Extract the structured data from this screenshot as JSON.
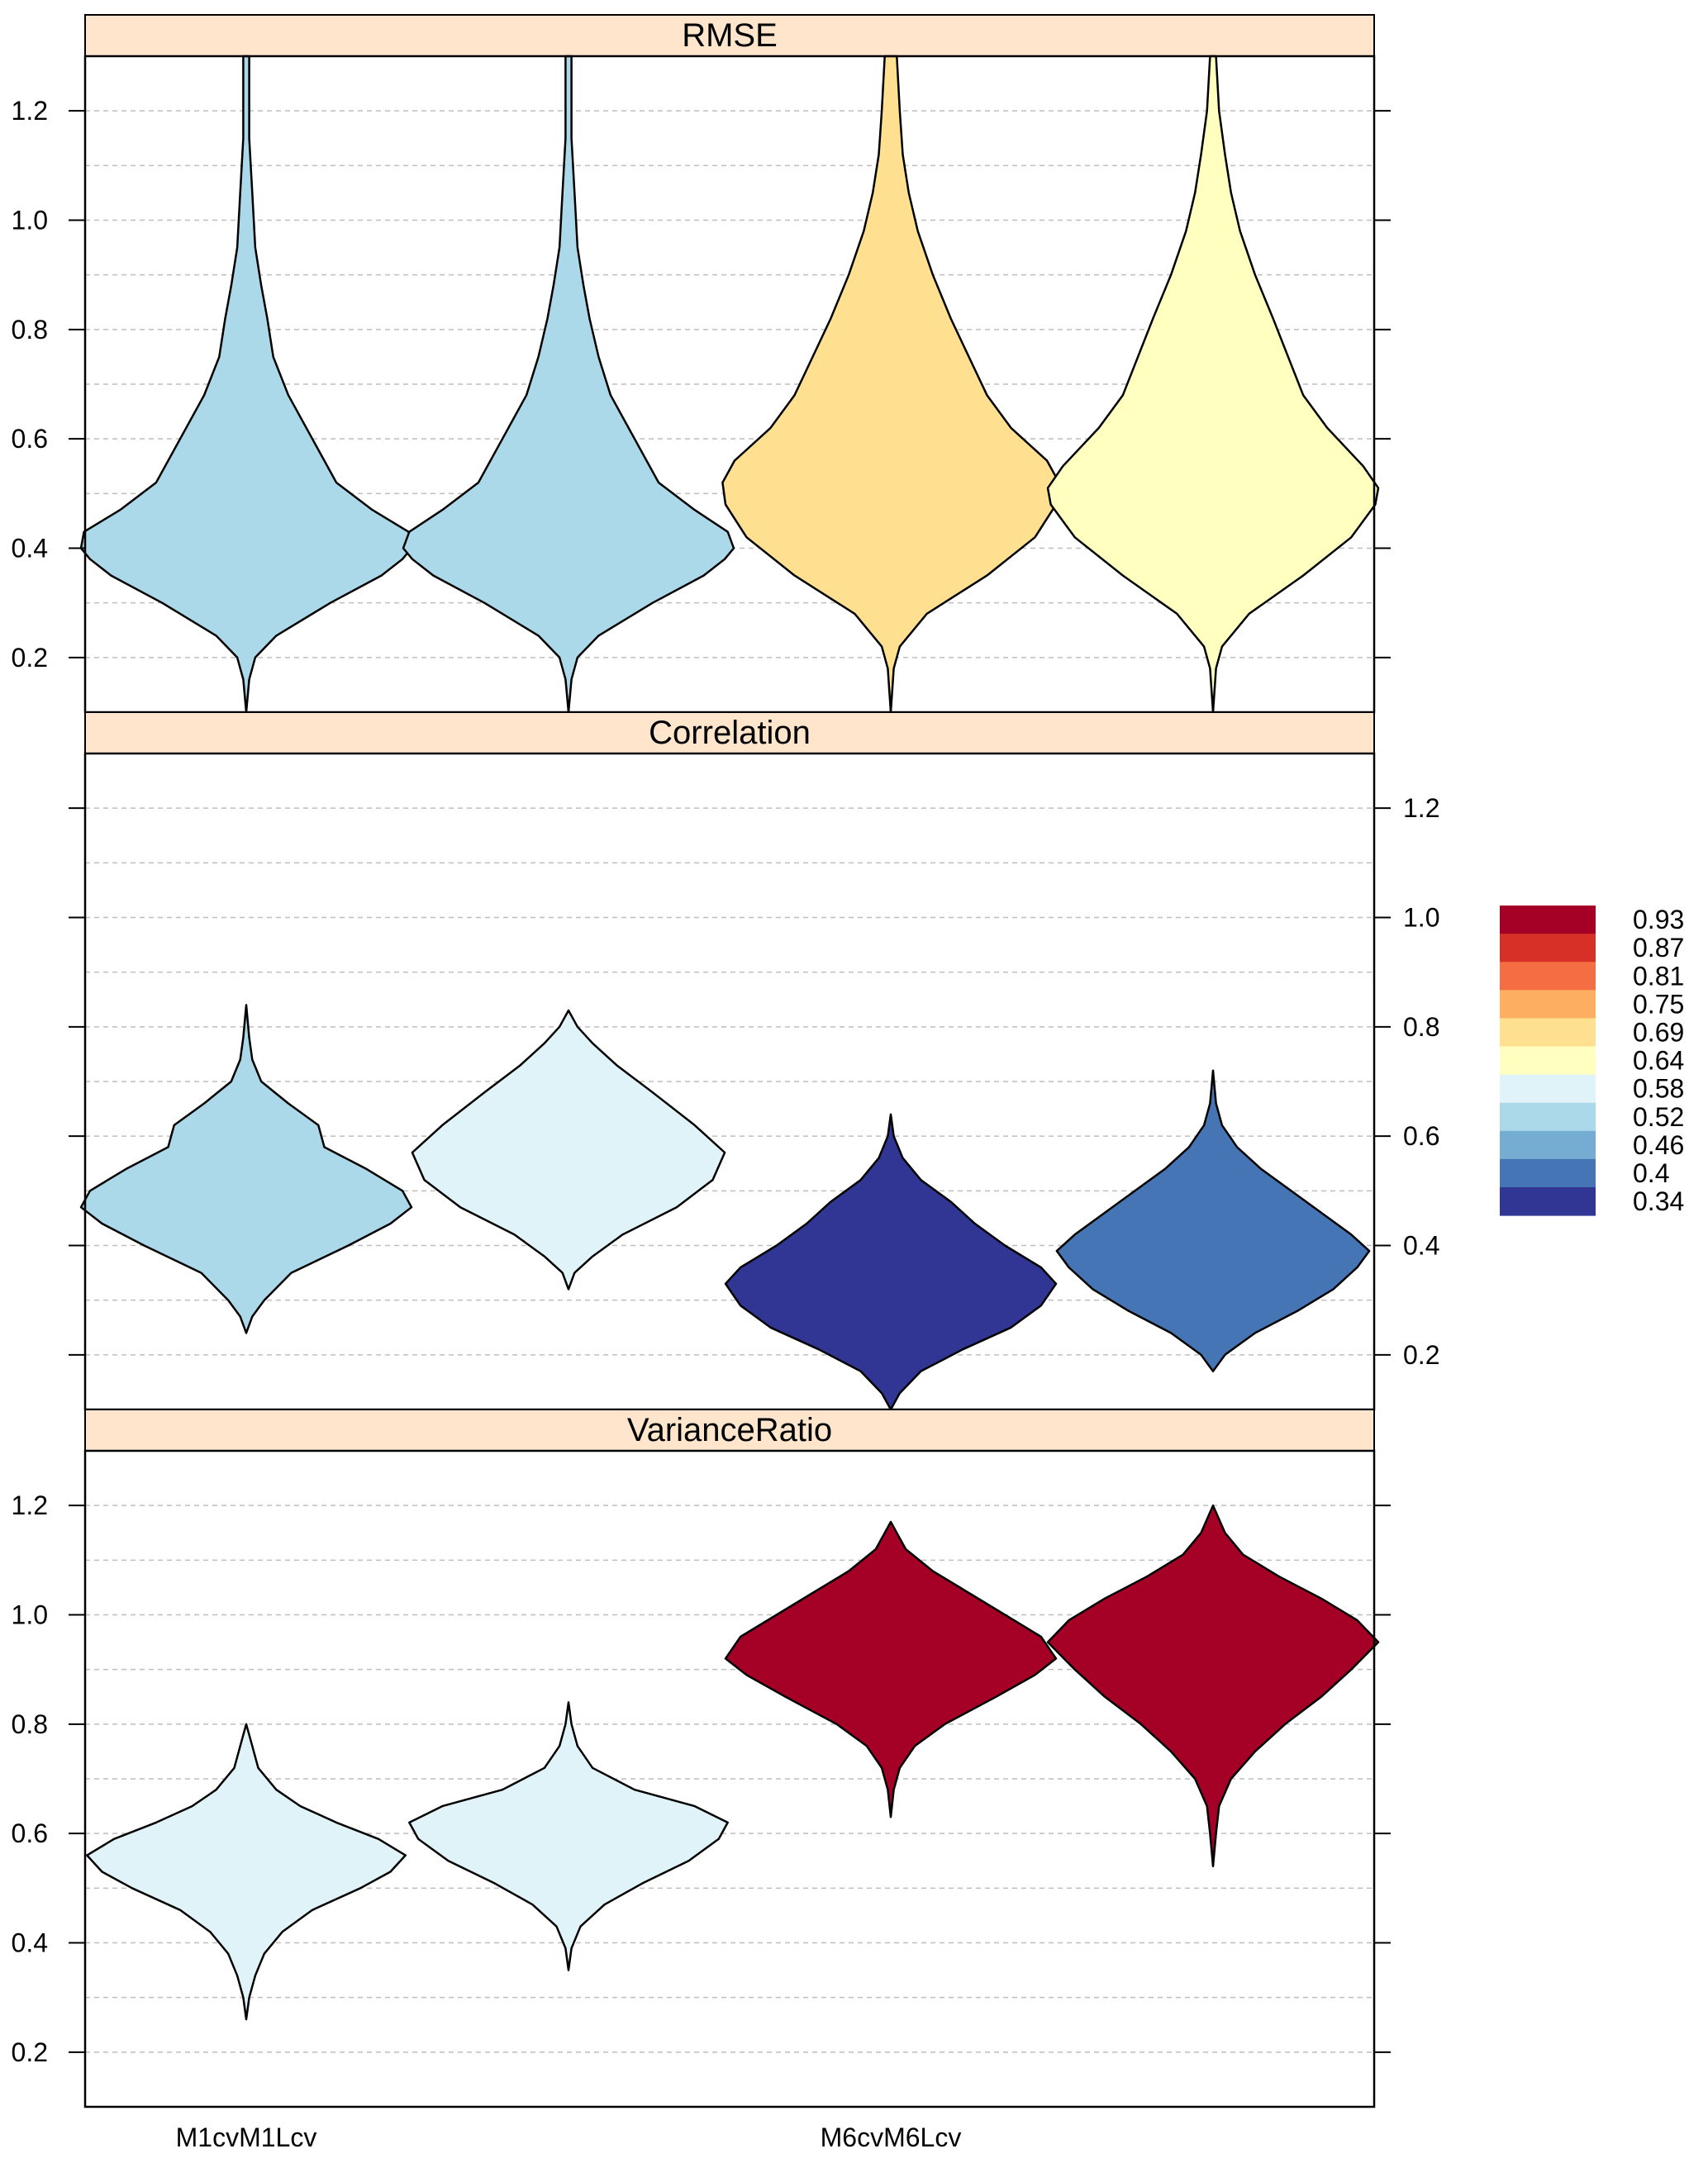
{
  "chart_data": {
    "type": "violin",
    "grid": true,
    "legend_position": "right",
    "categories": [
      "M1cvM1Lcv",
      "",
      "M6cvM6Lcv",
      ""
    ],
    "ylim": [
      0.1,
      1.3
    ],
    "yticks": [
      0.2,
      0.4,
      0.6,
      0.8,
      1.0,
      1.2
    ],
    "ytick_labels": [
      "0.2",
      "0.4",
      "0.6",
      "0.8",
      "1.0",
      "1.2"
    ],
    "panels": [
      {
        "title": "RMSE",
        "tick_side": "left",
        "violins": [
          {
            "color": "#ABD9E9",
            "min": 0.1,
            "max": 1.3,
            "profile": [
              [
                0.1,
                0.0
              ],
              [
                0.16,
                0.01
              ],
              [
                0.2,
                0.03
              ],
              [
                0.24,
                0.1
              ],
              [
                0.3,
                0.28
              ],
              [
                0.35,
                0.45
              ],
              [
                0.38,
                0.52
              ],
              [
                0.4,
                0.55
              ],
              [
                0.43,
                0.54
              ],
              [
                0.47,
                0.42
              ],
              [
                0.52,
                0.3
              ],
              [
                0.6,
                0.22
              ],
              [
                0.68,
                0.14
              ],
              [
                0.75,
                0.09
              ],
              [
                0.82,
                0.07
              ],
              [
                0.88,
                0.05
              ],
              [
                0.95,
                0.03
              ],
              [
                1.05,
                0.02
              ],
              [
                1.15,
                0.01
              ],
              [
                1.3,
                0.01
              ]
            ]
          },
          {
            "color": "#ABD9E9",
            "min": 0.1,
            "max": 1.3,
            "profile": [
              [
                0.1,
                0.0
              ],
              [
                0.16,
                0.01
              ],
              [
                0.2,
                0.03
              ],
              [
                0.24,
                0.1
              ],
              [
                0.3,
                0.28
              ],
              [
                0.35,
                0.45
              ],
              [
                0.38,
                0.52
              ],
              [
                0.4,
                0.55
              ],
              [
                0.43,
                0.53
              ],
              [
                0.47,
                0.42
              ],
              [
                0.52,
                0.3
              ],
              [
                0.6,
                0.22
              ],
              [
                0.68,
                0.14
              ],
              [
                0.75,
                0.1
              ],
              [
                0.82,
                0.07
              ],
              [
                0.88,
                0.05
              ],
              [
                0.95,
                0.03
              ],
              [
                1.05,
                0.02
              ],
              [
                1.15,
                0.01
              ],
              [
                1.3,
                0.01
              ]
            ]
          },
          {
            "color": "#FEE090",
            "min": 0.1,
            "max": 1.3,
            "profile": [
              [
                0.1,
                0.0
              ],
              [
                0.18,
                0.01
              ],
              [
                0.22,
                0.03
              ],
              [
                0.28,
                0.12
              ],
              [
                0.35,
                0.32
              ],
              [
                0.42,
                0.48
              ],
              [
                0.48,
                0.55
              ],
              [
                0.52,
                0.56
              ],
              [
                0.56,
                0.52
              ],
              [
                0.62,
                0.4
              ],
              [
                0.68,
                0.32
              ],
              [
                0.75,
                0.26
              ],
              [
                0.82,
                0.2
              ],
              [
                0.9,
                0.14
              ],
              [
                0.98,
                0.09
              ],
              [
                1.05,
                0.06
              ],
              [
                1.12,
                0.04
              ],
              [
                1.2,
                0.03
              ],
              [
                1.3,
                0.02
              ]
            ]
          },
          {
            "color": "#FFFFBF",
            "min": 0.1,
            "max": 1.3,
            "profile": [
              [
                0.1,
                0.0
              ],
              [
                0.18,
                0.01
              ],
              [
                0.22,
                0.03
              ],
              [
                0.28,
                0.12
              ],
              [
                0.35,
                0.3
              ],
              [
                0.42,
                0.46
              ],
              [
                0.48,
                0.54
              ],
              [
                0.51,
                0.55
              ],
              [
                0.55,
                0.5
              ],
              [
                0.62,
                0.38
              ],
              [
                0.68,
                0.3
              ],
              [
                0.75,
                0.25
              ],
              [
                0.82,
                0.2
              ],
              [
                0.9,
                0.14
              ],
              [
                0.98,
                0.09
              ],
              [
                1.05,
                0.06
              ],
              [
                1.12,
                0.04
              ],
              [
                1.2,
                0.02
              ],
              [
                1.3,
                0.01
              ]
            ]
          }
        ]
      },
      {
        "title": "Correlation",
        "tick_side": "right",
        "violins": [
          {
            "color": "#ABD9E9",
            "min": 0.24,
            "max": 0.84,
            "profile": [
              [
                0.24,
                0.0
              ],
              [
                0.27,
                0.02
              ],
              [
                0.3,
                0.06
              ],
              [
                0.35,
                0.15
              ],
              [
                0.4,
                0.34
              ],
              [
                0.44,
                0.48
              ],
              [
                0.47,
                0.55
              ],
              [
                0.5,
                0.52
              ],
              [
                0.54,
                0.4
              ],
              [
                0.58,
                0.26
              ],
              [
                0.62,
                0.24
              ],
              [
                0.66,
                0.14
              ],
              [
                0.7,
                0.05
              ],
              [
                0.74,
                0.02
              ],
              [
                0.78,
                0.01
              ],
              [
                0.84,
                0.0
              ]
            ]
          },
          {
            "color": "#E0F3F8",
            "min": 0.32,
            "max": 0.83,
            "profile": [
              [
                0.32,
                0.0
              ],
              [
                0.35,
                0.02
              ],
              [
                0.38,
                0.08
              ],
              [
                0.42,
                0.18
              ],
              [
                0.47,
                0.36
              ],
              [
                0.52,
                0.48
              ],
              [
                0.57,
                0.52
              ],
              [
                0.62,
                0.42
              ],
              [
                0.68,
                0.28
              ],
              [
                0.73,
                0.16
              ],
              [
                0.77,
                0.08
              ],
              [
                0.8,
                0.03
              ],
              [
                0.83,
                0.0
              ]
            ]
          },
          {
            "color": "#313695",
            "min": 0.1,
            "max": 0.64,
            "profile": [
              [
                0.1,
                0.0
              ],
              [
                0.13,
                0.03
              ],
              [
                0.17,
                0.1
              ],
              [
                0.21,
                0.24
              ],
              [
                0.25,
                0.4
              ],
              [
                0.29,
                0.5
              ],
              [
                0.33,
                0.55
              ],
              [
                0.36,
                0.5
              ],
              [
                0.4,
                0.38
              ],
              [
                0.44,
                0.28
              ],
              [
                0.48,
                0.2
              ],
              [
                0.52,
                0.1
              ],
              [
                0.56,
                0.04
              ],
              [
                0.6,
                0.01
              ],
              [
                0.64,
                0.0
              ]
            ]
          },
          {
            "color": "#4575B4",
            "min": 0.17,
            "max": 0.72,
            "profile": [
              [
                0.17,
                0.0
              ],
              [
                0.2,
                0.04
              ],
              [
                0.24,
                0.14
              ],
              [
                0.28,
                0.28
              ],
              [
                0.32,
                0.4
              ],
              [
                0.36,
                0.48
              ],
              [
                0.39,
                0.52
              ],
              [
                0.42,
                0.46
              ],
              [
                0.46,
                0.36
              ],
              [
                0.5,
                0.26
              ],
              [
                0.54,
                0.16
              ],
              [
                0.58,
                0.08
              ],
              [
                0.62,
                0.03
              ],
              [
                0.66,
                0.01
              ],
              [
                0.72,
                0.0
              ]
            ]
          }
        ]
      },
      {
        "title": "VarianceRatio",
        "tick_side": "left",
        "violins": [
          {
            "color": "#E0F3F8",
            "min": 0.26,
            "max": 0.8,
            "profile": [
              [
                0.26,
                0.0
              ],
              [
                0.3,
                0.01
              ],
              [
                0.34,
                0.03
              ],
              [
                0.38,
                0.06
              ],
              [
                0.42,
                0.12
              ],
              [
                0.46,
                0.22
              ],
              [
                0.5,
                0.38
              ],
              [
                0.53,
                0.48
              ],
              [
                0.56,
                0.53
              ],
              [
                0.59,
                0.44
              ],
              [
                0.62,
                0.3
              ],
              [
                0.65,
                0.18
              ],
              [
                0.68,
                0.1
              ],
              [
                0.72,
                0.04
              ],
              [
                0.76,
                0.02
              ],
              [
                0.8,
                0.0
              ]
            ]
          },
          {
            "color": "#E0F3F8",
            "min": 0.35,
            "max": 0.84,
            "profile": [
              [
                0.35,
                0.0
              ],
              [
                0.39,
                0.01
              ],
              [
                0.43,
                0.04
              ],
              [
                0.47,
                0.12
              ],
              [
                0.51,
                0.25
              ],
              [
                0.55,
                0.4
              ],
              [
                0.59,
                0.5
              ],
              [
                0.62,
                0.53
              ],
              [
                0.65,
                0.42
              ],
              [
                0.68,
                0.22
              ],
              [
                0.72,
                0.08
              ],
              [
                0.76,
                0.03
              ],
              [
                0.8,
                0.01
              ],
              [
                0.84,
                0.0
              ]
            ]
          },
          {
            "color": "#A50026",
            "min": 0.63,
            "max": 1.17,
            "profile": [
              [
                0.63,
                0.0
              ],
              [
                0.68,
                0.01
              ],
              [
                0.72,
                0.03
              ],
              [
                0.76,
                0.08
              ],
              [
                0.8,
                0.18
              ],
              [
                0.85,
                0.35
              ],
              [
                0.89,
                0.48
              ],
              [
                0.92,
                0.55
              ],
              [
                0.96,
                0.5
              ],
              [
                1.0,
                0.38
              ],
              [
                1.04,
                0.26
              ],
              [
                1.08,
                0.14
              ],
              [
                1.12,
                0.05
              ],
              [
                1.15,
                0.02
              ],
              [
                1.17,
                0.0
              ]
            ]
          },
          {
            "color": "#A50026",
            "min": 0.54,
            "max": 1.2,
            "profile": [
              [
                0.54,
                0.0
              ],
              [
                0.6,
                0.01
              ],
              [
                0.65,
                0.02
              ],
              [
                0.7,
                0.06
              ],
              [
                0.75,
                0.14
              ],
              [
                0.8,
                0.24
              ],
              [
                0.85,
                0.36
              ],
              [
                0.9,
                0.46
              ],
              [
                0.95,
                0.55
              ],
              [
                0.99,
                0.48
              ],
              [
                1.03,
                0.36
              ],
              [
                1.07,
                0.22
              ],
              [
                1.11,
                0.1
              ],
              [
                1.15,
                0.04
              ],
              [
                1.2,
                0.0
              ]
            ]
          }
        ]
      }
    ],
    "legend": [
      {
        "label": "0.93",
        "color": "#A50026"
      },
      {
        "label": "0.87",
        "color": "#D73027"
      },
      {
        "label": "0.81",
        "color": "#F46D43"
      },
      {
        "label": "0.75",
        "color": "#FDAE61"
      },
      {
        "label": "0.69",
        "color": "#FEE090"
      },
      {
        "label": "0.64",
        "color": "#FFFFBF"
      },
      {
        "label": "0.58",
        "color": "#E0F3F8"
      },
      {
        "label": "0.52",
        "color": "#ABD9E9"
      },
      {
        "label": "0.46",
        "color": "#74ADD1"
      },
      {
        "label": "0.4",
        "color": "#4575B4"
      },
      {
        "label": "0.34",
        "color": "#313695"
      }
    ],
    "colors": {
      "strip": "#FFE5CC",
      "grid": "#BEBEBE"
    }
  }
}
